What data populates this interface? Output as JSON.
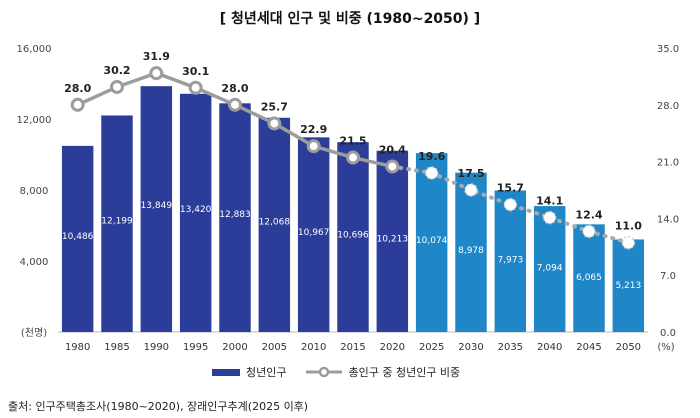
{
  "chart_data": {
    "type": "bar+line",
    "title": "[ 청년세대 인구 및 비중 (1980~2050) ]",
    "categories": [
      "1980",
      "1985",
      "1990",
      "1995",
      "2000",
      "2005",
      "2010",
      "2015",
      "2020",
      "2025",
      "2030",
      "2035",
      "2040",
      "2045",
      "2050"
    ],
    "series": [
      {
        "name": "청년인구",
        "type": "bar",
        "axis": "left",
        "values": [
          10486,
          12199,
          13849,
          13420,
          12883,
          12068,
          10967,
          10696,
          10213,
          10074,
          8978,
          7973,
          7094,
          6065,
          5213
        ],
        "labels": [
          "10,486",
          "12,199",
          "13,849",
          "13,420",
          "12,883",
          "12,068",
          "10,967",
          "10,696",
          "10,213",
          "10,074",
          "8,978",
          "7,973",
          "7,094",
          "6,065",
          "5,213"
        ]
      },
      {
        "name": "총인구 중 청년인구 비중",
        "type": "line",
        "axis": "right",
        "values": [
          28.0,
          30.2,
          31.9,
          30.1,
          28.0,
          25.7,
          22.9,
          21.5,
          20.4,
          19.6,
          17.5,
          15.7,
          14.1,
          12.4,
          11.0
        ],
        "labels": [
          "28.0",
          "30.2",
          "31.9",
          "30.1",
          "28.0",
          "25.7",
          "22.9",
          "21.5",
          "20.4",
          "19.6",
          "17.5",
          "15.7",
          "14.1",
          "12.4",
          "11.0"
        ]
      }
    ],
    "projection_start_index": 9,
    "ylim_left": [
      0,
      16000
    ],
    "ylim_right": [
      0,
      35
    ],
    "left_ticks": [
      "16,000",
      "12,000",
      "8,000",
      "4,000"
    ],
    "left_unit": "(천명)",
    "right_ticks": [
      "35.0",
      "28.0",
      "21.0",
      "14.0",
      "7.0",
      "0.0"
    ],
    "right_unit": "(%)",
    "legend_position": "bottom",
    "colors": {
      "bar_actual": "#2c3d99",
      "bar_projection": "#1f86c8",
      "line_actual": "#9c9c9c",
      "line_projection": "#a9a9a9"
    }
  },
  "source_note": "출처: 인구주택총조사(1980~2020), 장래인구추계(2025 이후)"
}
